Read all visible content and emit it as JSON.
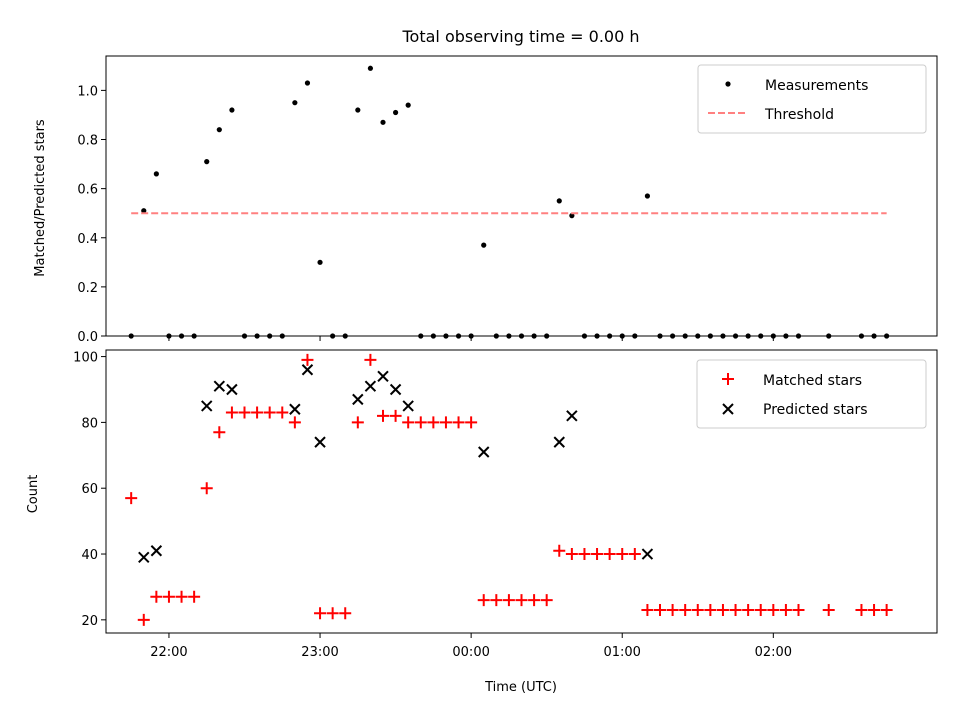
{
  "chart_data": [
    {
      "type": "scatter",
      "title": "Total observing time = 0.00 h",
      "xlabel": "",
      "ylabel": "Matched/Predicted stars",
      "ylim": [
        0,
        1.14
      ],
      "yticks": [
        "0.0",
        "0.2",
        "0.4",
        "0.6",
        "0.8",
        "1.0"
      ],
      "xlim": [
        "21:35",
        "03:05"
      ],
      "legend": "top-right",
      "series": [
        {
          "name": "Measurements",
          "color": "#000000",
          "marker": "dot",
          "x": [
            "21:45",
            "21:50",
            "21:55",
            "22:00",
            "22:05",
            "22:10",
            "22:15",
            "22:20",
            "22:25",
            "22:30",
            "22:35",
            "22:40",
            "22:45",
            "22:50",
            "22:55",
            "23:00",
            "23:05",
            "23:10",
            "23:15",
            "23:20",
            "23:25",
            "23:30",
            "23:35",
            "23:40",
            "23:45",
            "23:50",
            "23:55",
            "00:00",
            "00:05",
            "00:10",
            "00:15",
            "00:20",
            "00:25",
            "00:30",
            "00:35",
            "00:40",
            "00:45",
            "00:50",
            "00:55",
            "01:00",
            "01:05",
            "01:10",
            "01:15",
            "01:20",
            "01:25",
            "01:30",
            "01:35",
            "01:40",
            "01:45",
            "01:50",
            "01:55",
            "02:00",
            "02:05",
            "02:10",
            "02:22",
            "02:35",
            "02:40",
            "02:45"
          ],
          "y": [
            0,
            0.51,
            0.66,
            0,
            0,
            0,
            0.71,
            0.84,
            0.92,
            0,
            0,
            0,
            0,
            0.95,
            1.03,
            0.3,
            0,
            0,
            0.92,
            1.09,
            0.87,
            0.91,
            0.94,
            0,
            0,
            0,
            0,
            0,
            0.37,
            0,
            0,
            0,
            0,
            0,
            0.55,
            0.49,
            0,
            0,
            0,
            0,
            0,
            0.57,
            0,
            0,
            0,
            0,
            0,
            0,
            0,
            0,
            0,
            0,
            0,
            0,
            0,
            0,
            0,
            0
          ]
        },
        {
          "name": "Threshold",
          "color": "#ff8080",
          "style": "dashed",
          "x": [
            "21:45",
            "02:45"
          ],
          "y": [
            0.5,
            0.5
          ]
        }
      ]
    },
    {
      "type": "scatter",
      "title": "",
      "xlabel": "Time (UTC)",
      "ylabel": "Count",
      "ylim": [
        16,
        102
      ],
      "yticks": [
        "20",
        "40",
        "60",
        "80",
        "100"
      ],
      "xlim": [
        "21:35",
        "03:05"
      ],
      "xticks": [
        "22:00",
        "23:00",
        "00:00",
        "01:00",
        "02:00"
      ],
      "legend": "top-right",
      "series": [
        {
          "name": "Matched stars",
          "color": "#ff0000",
          "marker": "plus",
          "x": [
            "21:45",
            "21:50",
            "21:55",
            "22:00",
            "22:05",
            "22:10",
            "22:15",
            "22:20",
            "22:25",
            "22:30",
            "22:35",
            "22:40",
            "22:45",
            "22:50",
            "22:55",
            "23:00",
            "23:05",
            "23:10",
            "23:15",
            "23:20",
            "23:25",
            "23:30",
            "23:35",
            "23:40",
            "23:45",
            "23:50",
            "23:55",
            "00:00",
            "00:05",
            "00:10",
            "00:15",
            "00:20",
            "00:25",
            "00:30",
            "00:35",
            "00:40",
            "00:45",
            "00:50",
            "00:55",
            "01:00",
            "01:05",
            "01:10",
            "01:15",
            "01:20",
            "01:25",
            "01:30",
            "01:35",
            "01:40",
            "01:45",
            "01:50",
            "01:55",
            "02:00",
            "02:05",
            "02:10",
            "02:22",
            "02:35",
            "02:40",
            "02:45"
          ],
          "y": [
            57,
            20,
            27,
            27,
            27,
            27,
            60,
            77,
            83,
            83,
            83,
            83,
            83,
            80,
            99,
            22,
            22,
            22,
            80,
            99,
            82,
            82,
            80,
            80,
            80,
            80,
            80,
            80,
            26,
            26,
            26,
            26,
            26,
            26,
            41,
            40,
            40,
            40,
            40,
            40,
            40,
            23,
            23,
            23,
            23,
            23,
            23,
            23,
            23,
            23,
            23,
            23,
            23,
            23,
            23,
            23,
            23,
            23
          ]
        },
        {
          "name": "Predicted stars",
          "color": "#000000",
          "marker": "x",
          "x": [
            "21:50",
            "21:55",
            "22:15",
            "22:20",
            "22:25",
            "22:50",
            "22:55",
            "23:00",
            "23:15",
            "23:20",
            "23:25",
            "23:30",
            "23:35",
            "00:05",
            "00:35",
            "00:40",
            "01:10"
          ],
          "y": [
            39,
            41,
            85,
            91,
            90,
            84,
            96,
            74,
            87,
            91,
            94,
            90,
            85,
            71,
            74,
            82,
            40
          ]
        }
      ]
    }
  ]
}
